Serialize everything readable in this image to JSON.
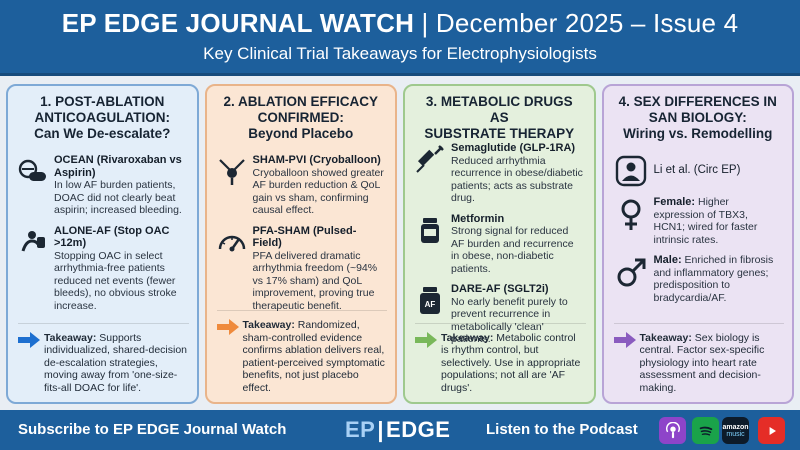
{
  "header": {
    "title": "EP EDGE JOURNAL WATCH",
    "issue": "| December 2025 – Issue 4",
    "subtitle": "Key Clinical Trial Takeaways for Electrophysiologists"
  },
  "cards": [
    {
      "title_lines": [
        "1. POST-ABLATION",
        "ANTICOAGULATION:",
        "Can We De-escalate?"
      ],
      "items": [
        {
          "icon": "pills-icon",
          "name": "OCEAN (Rivaroxaban vs Aspirin)",
          "text": "In low AF burden patients, DOAC did not clearly beat aspirin; increased bleeding."
        },
        {
          "icon": "stop-hand-icon",
          "name": "ALONE-AF (Stop OAC >12m)",
          "text": "Stopping OAC in select arrhythmia-free patients reduced net events (fewer bleeds), no obvious stroke increase."
        }
      ],
      "takeaway_label": "Takeaway:",
      "takeaway": "Supports individualized, shared-decision de-escalation strategies, moving away from 'one-size-fits-all DOAC for life'."
    },
    {
      "title_lines": [
        "2. ABLATION EFFICACY",
        "CONFIRMED:",
        "Beyond Placebo"
      ],
      "items": [
        {
          "icon": "cryoballoon-icon",
          "name": "SHAM-PVI (Cryoballoon)",
          "text": "Cryoballoon showed greater AF burden reduction & QoL gain vs sham, confirming causal effect."
        },
        {
          "icon": "gauge-icon",
          "name": "PFA-SHAM (Pulsed-Field)",
          "text": "PFA delivered dramatic arrhythmia freedom (~94% vs 17% sham) and QoL improvement, proving true therapeutic benefit."
        }
      ],
      "takeaway_label": "Takeaway:",
      "takeaway": "Randomized, sham-controlled evidence confirms ablation delivers real, patient-perceived symptomatic benefits, not just placebo effect."
    },
    {
      "title_lines": [
        "3. METABOLIC DRUGS AS",
        "SUBSTRATE THERAPY"
      ],
      "items": [
        {
          "icon": "syringe-icon",
          "name": "Semaglutide (GLP-1RA)",
          "text": "Reduced arrhythmia recurrence in obese/diabetic patients; acts as substrate drug."
        },
        {
          "icon": "pill-bottle-icon",
          "name": "Metformin",
          "text": "Strong signal for reduced AF burden and recurrence in obese, non-diabetic patients."
        },
        {
          "icon": "af-pill-bottle-icon",
          "badge": "AF",
          "name": "DARE-AF (SGLT2i)",
          "text": "No early benefit purely to prevent recurrence in metabolically 'clean' patients."
        }
      ],
      "takeaway_label": "Takeaway:",
      "takeaway": "Metabolic control is rhythm control, but selectively. Use in appropriate populations; not all are 'AF drugs'."
    },
    {
      "title_lines": [
        "4. SEX DIFFERENCES IN",
        "SAN BIOLOGY:",
        "Wiring vs. Remodelling"
      ],
      "items": [
        {
          "icon": "person-icon",
          "name": "Li et al. (Circ EP)",
          "text": ""
        },
        {
          "icon": "female-symbol-icon",
          "name": "Female:",
          "text": "Higher expression of TBX3, HCN1; wired for faster intrinsic rates."
        },
        {
          "icon": "male-symbol-icon",
          "name": "Male:",
          "text": "Enriched in fibrosis and inflammatory genes; predisposition to bradycardia/AF."
        }
      ],
      "takeaway_label": "Takeaway:",
      "takeaway": "Sex biology is central. Factor sex-specific physiology into heart rate assessment and decision-making."
    }
  ],
  "footer": {
    "subscribe": "Subscribe to EP EDGE  Journal Watch",
    "logo_ep": "EP",
    "logo_sep": "|",
    "logo_edge": "EDGE",
    "listen": "Listen to the Podcast",
    "platforms": [
      {
        "name": "apple-podcasts-icon"
      },
      {
        "name": "spotify-icon"
      },
      {
        "name": "amazon-music-icon",
        "label_top": "amazon",
        "label_bottom": "music"
      },
      {
        "name": "youtube-icon"
      }
    ]
  },
  "colors": {
    "header": "#1d5f9c",
    "arrow_blue": "#1d6fd0",
    "arrow_orange": "#ef8a3c",
    "arrow_green": "#79b85a",
    "arrow_purple": "#8a5bbf"
  }
}
